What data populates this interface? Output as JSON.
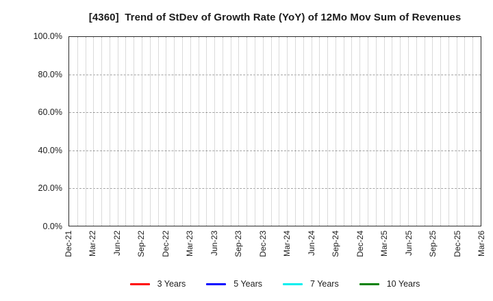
{
  "chart_data": {
    "type": "line",
    "title": "[4360]  Trend of StDev of Growth Rate (YoY) of 12Mo Mov Sum of Revenues",
    "x_axis": {
      "tick_labels": [
        "Dec-21",
        "Mar-22",
        "Jun-22",
        "Sep-22",
        "Dec-22",
        "Mar-23",
        "Jun-23",
        "Sep-23",
        "Dec-23",
        "Mar-24",
        "Jun-24",
        "Sep-24",
        "Dec-24",
        "Mar-25",
        "Jun-25",
        "Sep-25",
        "Dec-25",
        "Mar-26"
      ],
      "months_per_tick": 3,
      "total_month_intervals": 51,
      "tick_label_rotation_deg": 90,
      "minor_grid_unit": "month"
    },
    "y_axis": {
      "tick_labels": [
        "0.0%",
        "20.0%",
        "40.0%",
        "60.0%",
        "80.0%",
        "100.0%"
      ],
      "tick_values": [
        0,
        20,
        40,
        60,
        80,
        100
      ],
      "min": 0,
      "max": 100,
      "unit": "%"
    },
    "series": [
      {
        "name": "3 Years",
        "color": "#ff0000",
        "values": []
      },
      {
        "name": "5 Years",
        "color": "#0000ff",
        "values": []
      },
      {
        "name": "7 Years",
        "color": "#00eeee",
        "values": []
      },
      {
        "name": "10 Years",
        "color": "#008000",
        "values": []
      }
    ],
    "grid": "on",
    "legend_position": "bottom",
    "plot_area_empty": true
  },
  "colors": {
    "background": "#ffffff",
    "plot_border": "#2a2a2a",
    "vertical_grid": "#b5b5b5",
    "horizontal_grid": "#a3a3a3",
    "text": "#1c1c1c"
  }
}
